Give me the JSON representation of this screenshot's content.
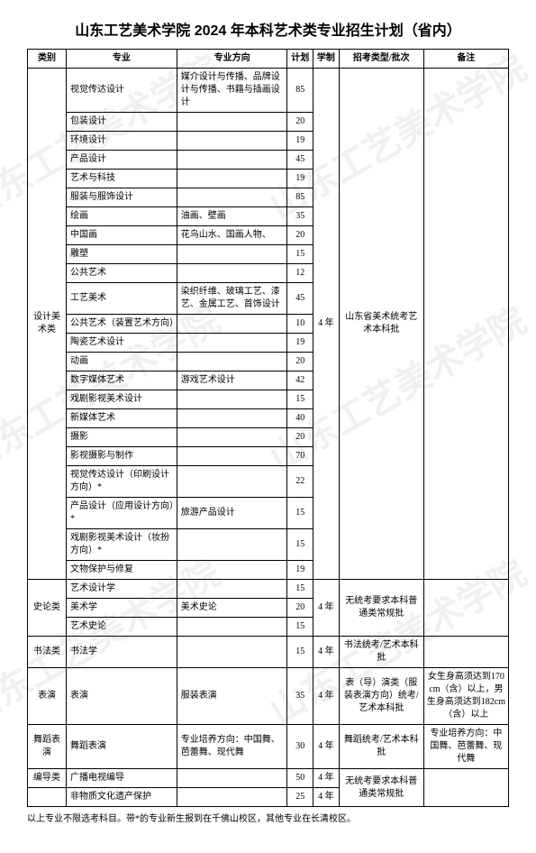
{
  "title": "山东工艺美术学院 2024 年本科艺术类专业招生计划（省内）",
  "watermark_text": "山东工艺美术学院",
  "columns": {
    "category": "类别",
    "major": "专业",
    "direction": "专业方向",
    "plan": "计划",
    "duration": "学制",
    "exam_type": "招考类型/批次",
    "remark": "备注"
  },
  "col_widths": {
    "category": "42px",
    "major": "120px",
    "direction": "120px",
    "plan": "28px",
    "duration": "28px",
    "exam_type": "92px",
    "remark": "92px"
  },
  "groups": [
    {
      "category": "设计美术类",
      "duration": "4 年",
      "exam_type": "山东省美术统考艺术本科批",
      "remark": "",
      "rows": [
        {
          "major": "视觉传达设计",
          "direction": "媒介设计与传播、品牌设计与传播、书籍与插画设计",
          "plan": "85"
        },
        {
          "major": "包装设计",
          "direction": "",
          "plan": "20"
        },
        {
          "major": "环境设计",
          "direction": "",
          "plan": "19"
        },
        {
          "major": "产品设计",
          "direction": "",
          "plan": "45"
        },
        {
          "major": "艺术与科技",
          "direction": "",
          "plan": "19"
        },
        {
          "major": "服装与服饰设计",
          "direction": "",
          "plan": "85"
        },
        {
          "major": "绘画",
          "direction": "油画、壁画",
          "plan": "35"
        },
        {
          "major": "中国画",
          "direction": "花鸟山水、国画人物、",
          "plan": "20"
        },
        {
          "major": "雕塑",
          "direction": "",
          "plan": "15"
        },
        {
          "major": "公共艺术",
          "direction": "",
          "plan": "12"
        },
        {
          "major": "工艺美术",
          "direction": "染织纤维、玻璃工艺、漆艺、金属工艺、首饰设计",
          "plan": "45"
        },
        {
          "major": "公共艺术（装置艺术方向）",
          "direction": "",
          "plan": "10"
        },
        {
          "major": "陶瓷艺术设计",
          "direction": "",
          "plan": "19"
        },
        {
          "major": "动画",
          "direction": "",
          "plan": "20"
        },
        {
          "major": "数字媒体艺术",
          "direction": "游戏艺术设计",
          "plan": "42"
        },
        {
          "major": "戏剧影视美术设计",
          "direction": "",
          "plan": "15"
        },
        {
          "major": "新媒体艺术",
          "direction": "",
          "plan": "40"
        },
        {
          "major": "摄影",
          "direction": "",
          "plan": "20"
        },
        {
          "major": "影视摄影与制作",
          "direction": "",
          "plan": "70"
        },
        {
          "major": "视觉传达设计（印刷设计方向）*",
          "direction": "",
          "plan": "22"
        },
        {
          "major": "产品设计（应用设计方向）*",
          "direction": "旅游产品设计",
          "plan": "15"
        },
        {
          "major": "戏剧影视美术设计（妆扮方向）*",
          "direction": "",
          "plan": "15"
        },
        {
          "major": "文物保护与修复",
          "direction": "",
          "plan": "19"
        }
      ]
    },
    {
      "category": "史论类",
      "duration": "4 年",
      "exam_type": "无统考要求本科普通类常规批",
      "remark": "",
      "rows": [
        {
          "major": "艺术设计学",
          "direction": "",
          "plan": "15"
        },
        {
          "major": "美术学",
          "direction": "美术史论",
          "plan": "20"
        },
        {
          "major": "艺术史论",
          "direction": "",
          "plan": "15"
        }
      ]
    },
    {
      "category": "书法类",
      "duration": "4 年",
      "exam_type": "书法统考/艺术本科批",
      "remark": "",
      "rows": [
        {
          "major": "书法学",
          "direction": "",
          "plan": "15"
        }
      ]
    },
    {
      "category": "表演",
      "duration": "4 年",
      "exam_type": "表（导）演类（服装表演方向）统考/艺术本科批",
      "remark": "女生身高须达到170cm（含）以上，男生身高须达到182cm（含）以上",
      "rows": [
        {
          "major": "表演",
          "direction": "服装表演",
          "plan": "35"
        }
      ]
    },
    {
      "category": "舞蹈表演",
      "duration": "4 年",
      "exam_type": "舞蹈统考/艺术本科批",
      "remark": "专业培养方向：中国舞、芭蕾舞、现代舞",
      "rows": [
        {
          "major": "舞蹈表演",
          "direction": "专业培养方向：中国舞、芭蕾舞、现代舞",
          "plan": "30"
        }
      ]
    },
    {
      "category": "编导类",
      "duration_shared": true,
      "exam_type": "无统考要求本科普通类常规批",
      "remark": "",
      "rows": [
        {
          "major": "广播电视编导",
          "direction": "",
          "plan": "50",
          "duration": "4 年"
        },
        {
          "major": "非物质文化遗产保护",
          "direction": "",
          "plan": "25",
          "duration": "4 年",
          "no_category": true
        }
      ]
    }
  ],
  "footnote": "以上专业不限选考科目。带*的专业新生报到在千佛山校区，其他专业在长清校区。"
}
